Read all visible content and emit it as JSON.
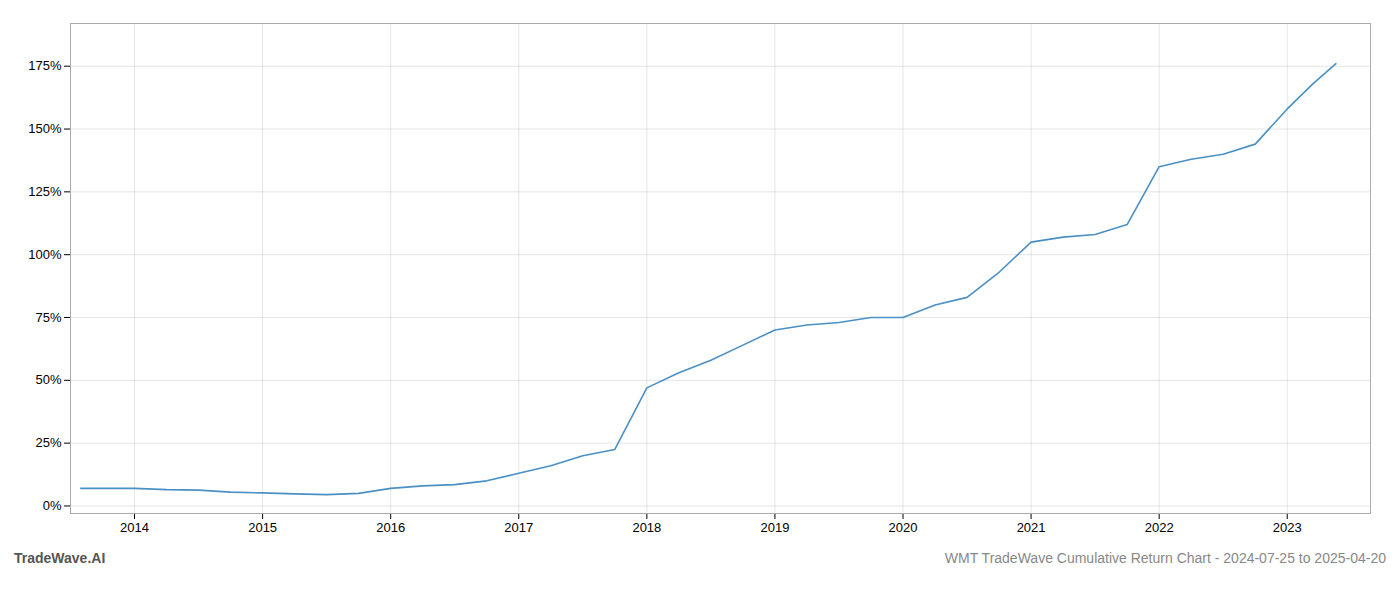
{
  "chart_data": {
    "type": "line",
    "title": "WMT TradeWave Cumulative Return Chart - 2024-07-25 to 2025-04-20",
    "annotations": [
      "TradeWave.AI"
    ],
    "color": "#4a90c4",
    "x": [
      2013.58,
      2013.75,
      2014.0,
      2014.25,
      2014.5,
      2014.75,
      2015.0,
      2015.25,
      2015.5,
      2015.75,
      2016.0,
      2016.25,
      2016.5,
      2016.75,
      2017.0,
      2017.25,
      2017.5,
      2017.75,
      2018.0,
      2018.25,
      2018.5,
      2018.75,
      2019.0,
      2019.25,
      2019.5,
      2019.75,
      2020.0,
      2020.25,
      2020.5,
      2020.75,
      2021.0,
      2021.25,
      2021.5,
      2021.75,
      2022.0,
      2022.25,
      2022.5,
      2022.75,
      2023.0,
      2023.2,
      2023.38
    ],
    "values": [
      0.07,
      0.07,
      0.07,
      0.065,
      0.063,
      0.055,
      0.052,
      0.048,
      0.045,
      0.05,
      0.07,
      0.08,
      0.085,
      0.1,
      0.13,
      0.16,
      0.2,
      0.225,
      0.47,
      0.53,
      0.58,
      0.64,
      0.7,
      0.72,
      0.73,
      0.75,
      0.75,
      0.8,
      0.83,
      0.93,
      1.05,
      1.07,
      1.08,
      1.12,
      1.35,
      1.38,
      1.4,
      1.44,
      1.58,
      1.68,
      1.76
    ],
    "xlim": [
      2013.5,
      2023.65
    ],
    "xticks": [
      2014,
      2015,
      2016,
      2017,
      2018,
      2019,
      2020,
      2021,
      2022,
      2023
    ],
    "ylim": [
      -0.03,
      1.92
    ],
    "yticks": [
      {
        "value": 0.0,
        "label": "0%"
      },
      {
        "value": 0.25,
        "label": "25%"
      },
      {
        "value": 0.5,
        "label": "50%"
      },
      {
        "value": 0.75,
        "label": "75%"
      },
      {
        "value": 1.0,
        "label": "100%"
      },
      {
        "value": 1.25,
        "label": "125%"
      },
      {
        "value": 1.5,
        "label": "150%"
      },
      {
        "value": 1.75,
        "label": "175%"
      }
    ],
    "grid": true
  }
}
